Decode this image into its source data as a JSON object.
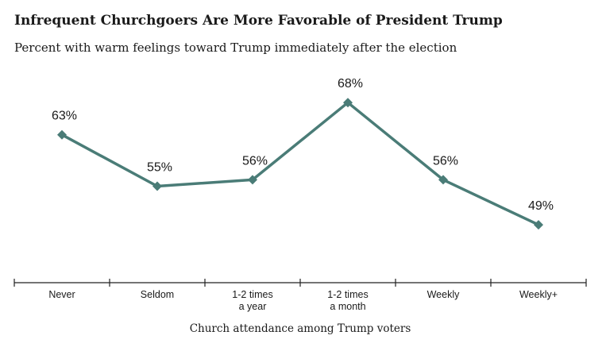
{
  "chart_data": {
    "type": "line",
    "title": "Infrequent Churchgoers Are More Favorable of President Trump",
    "subtitle": "Percent with warm feelings toward Trump immediately after the election",
    "xlabel": "Church attendance among Trump voters",
    "ylabel": "",
    "categories": [
      [
        "Never"
      ],
      [
        "Seldom"
      ],
      [
        "1-2 times",
        "a year"
      ],
      [
        "1-2 times",
        "a month"
      ],
      [
        "Weekly"
      ],
      [
        "Weekly+"
      ]
    ],
    "series": [
      {
        "values": [
          63,
          55,
          56,
          68,
          56,
          49
        ],
        "labels": [
          "63%",
          "55%",
          "56%",
          "68%",
          "56%",
          "49%"
        ]
      }
    ],
    "ylim": [
      40,
      72
    ],
    "grid": false,
    "color": "#4a7c77"
  }
}
